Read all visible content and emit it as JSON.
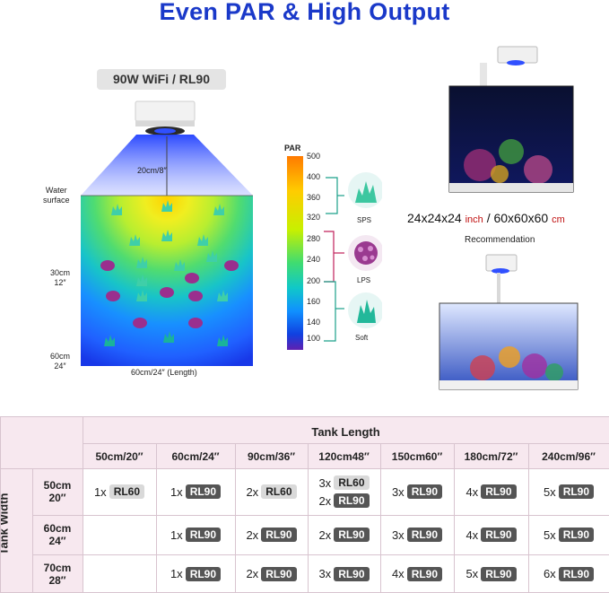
{
  "title": "Even PAR & High Output",
  "model": "90W WiFi / RL90",
  "diagram": {
    "beam_label": "20cm/8″",
    "water_surface": "Water\nsurface",
    "depth_30": "30cm\n12″",
    "depth_60": "60cm\n24″",
    "length_label": "60cm/24″ (Length)"
  },
  "par_scale": {
    "label": "PAR",
    "ticks": [
      "500",
      "400",
      "360",
      "320",
      "280",
      "240",
      "200",
      "160",
      "140",
      "100"
    ],
    "categories": [
      "SPS",
      "LPS",
      "Soft"
    ],
    "colors": [
      "#ff7a00",
      "#ffd000",
      "#c8f000",
      "#40e060",
      "#10c8c8",
      "#1090ff",
      "#1040e0",
      "#5020c0"
    ]
  },
  "tank_size": {
    "a": "24x24x24",
    "unit_a": "inch",
    "sep": "/",
    "b": "60x60x60",
    "unit_b": "cm"
  },
  "recommendation": "Recommendation",
  "table": {
    "length_title": "Tank Length",
    "width_title": "Tank Width",
    "columns": [
      "50cm/20″",
      "60cm/24″",
      "90cm/36″",
      "120cm48″",
      "150cm60″",
      "180cm/72″",
      "240cm/96″"
    ],
    "rows": [
      {
        "label": "50cm\n20″",
        "cells": [
          [
            {
              "qty": "1x",
              "model": "RL60",
              "style": "light"
            }
          ],
          [
            {
              "qty": "1x",
              "model": "RL90",
              "style": "dark"
            }
          ],
          [
            {
              "qty": "2x",
              "model": "RL60",
              "style": "light"
            }
          ],
          [
            {
              "qty": "3x",
              "model": "RL60",
              "style": "light"
            },
            {
              "qty": "2x",
              "model": "RL90",
              "style": "dark"
            }
          ],
          [
            {
              "qty": "3x",
              "model": "RL90",
              "style": "dark"
            }
          ],
          [
            {
              "qty": "4x",
              "model": "RL90",
              "style": "dark"
            }
          ],
          [
            {
              "qty": "5x",
              "model": "RL90",
              "style": "dark"
            }
          ]
        ]
      },
      {
        "label": "60cm\n24″",
        "cells": [
          [],
          [
            {
              "qty": "1x",
              "model": "RL90",
              "style": "dark"
            }
          ],
          [
            {
              "qty": "2x",
              "model": "RL90",
              "style": "dark"
            }
          ],
          [
            {
              "qty": "2x",
              "model": "RL90",
              "style": "dark"
            }
          ],
          [
            {
              "qty": "3x",
              "model": "RL90",
              "style": "dark"
            }
          ],
          [
            {
              "qty": "4x",
              "model": "RL90",
              "style": "dark"
            }
          ],
          [
            {
              "qty": "5x",
              "model": "RL90",
              "style": "dark"
            }
          ]
        ]
      },
      {
        "label": "70cm\n28″",
        "cells": [
          [],
          [
            {
              "qty": "1x",
              "model": "RL90",
              "style": "dark"
            }
          ],
          [
            {
              "qty": "2x",
              "model": "RL90",
              "style": "dark"
            }
          ],
          [
            {
              "qty": "3x",
              "model": "RL90",
              "style": "dark"
            }
          ],
          [
            {
              "qty": "4x",
              "model": "RL90",
              "style": "dark"
            }
          ],
          [
            {
              "qty": "5x",
              "model": "RL90",
              "style": "dark"
            }
          ],
          [
            {
              "qty": "6x",
              "model": "RL90",
              "style": "dark"
            }
          ]
        ]
      }
    ]
  }
}
